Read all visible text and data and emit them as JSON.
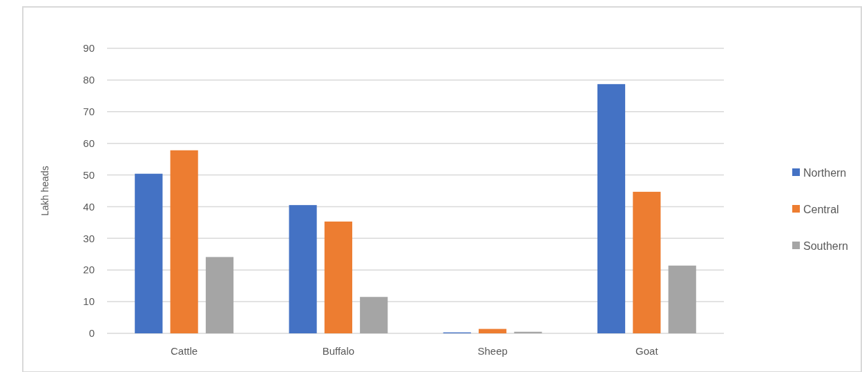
{
  "chart_data": {
    "type": "bar",
    "ylabel": "Lakh heads",
    "categories": [
      "Cattle",
      "Buffalo",
      "Sheep",
      "Goat"
    ],
    "series": [
      {
        "name": "Northern",
        "color": "#4472c4",
        "values": [
          50.4,
          40.5,
          0.3,
          78.7
        ]
      },
      {
        "name": "Central",
        "color": "#ed7d31",
        "values": [
          57.8,
          35.3,
          1.4,
          44.7
        ]
      },
      {
        "name": "Southern",
        "color": "#a5a5a5",
        "values": [
          24.1,
          11.5,
          0.5,
          21.4
        ]
      }
    ],
    "ylim": [
      0,
      90
    ],
    "yticks": [
      0,
      10,
      20,
      30,
      40,
      50,
      60,
      70,
      80,
      90
    ],
    "grid": "y",
    "legend": "right"
  }
}
